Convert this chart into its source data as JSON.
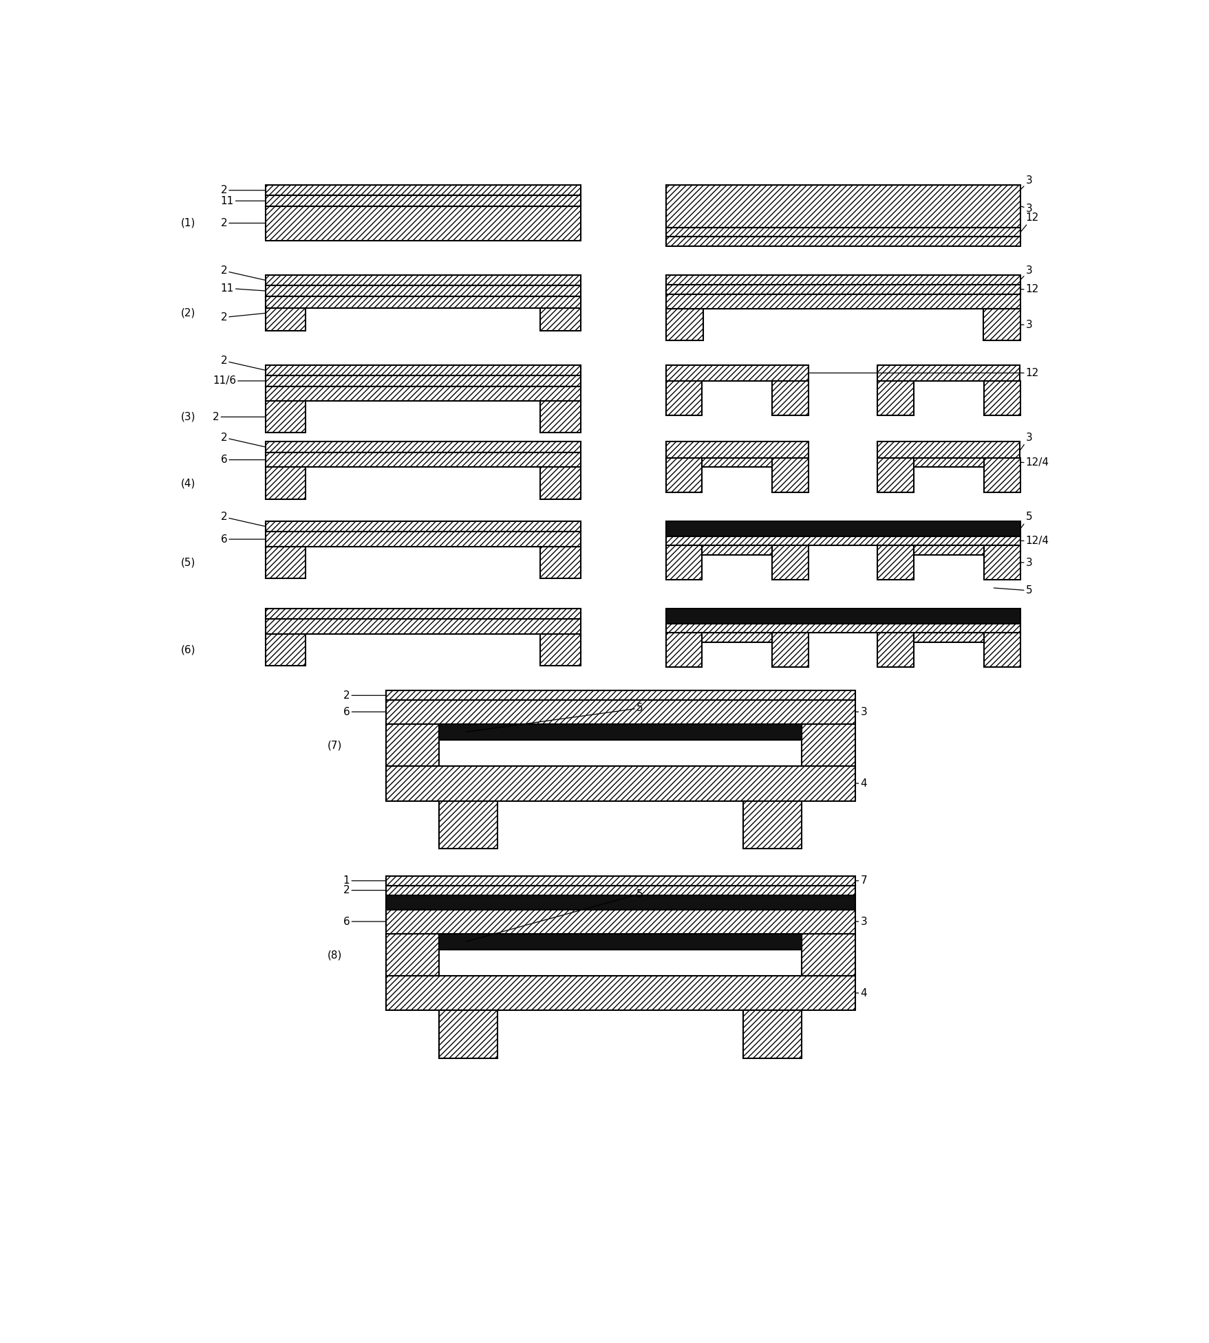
{
  "fig_width": 17.58,
  "fig_height": 19.53,
  "bg_color": "#ffffff",
  "fs": 11
}
